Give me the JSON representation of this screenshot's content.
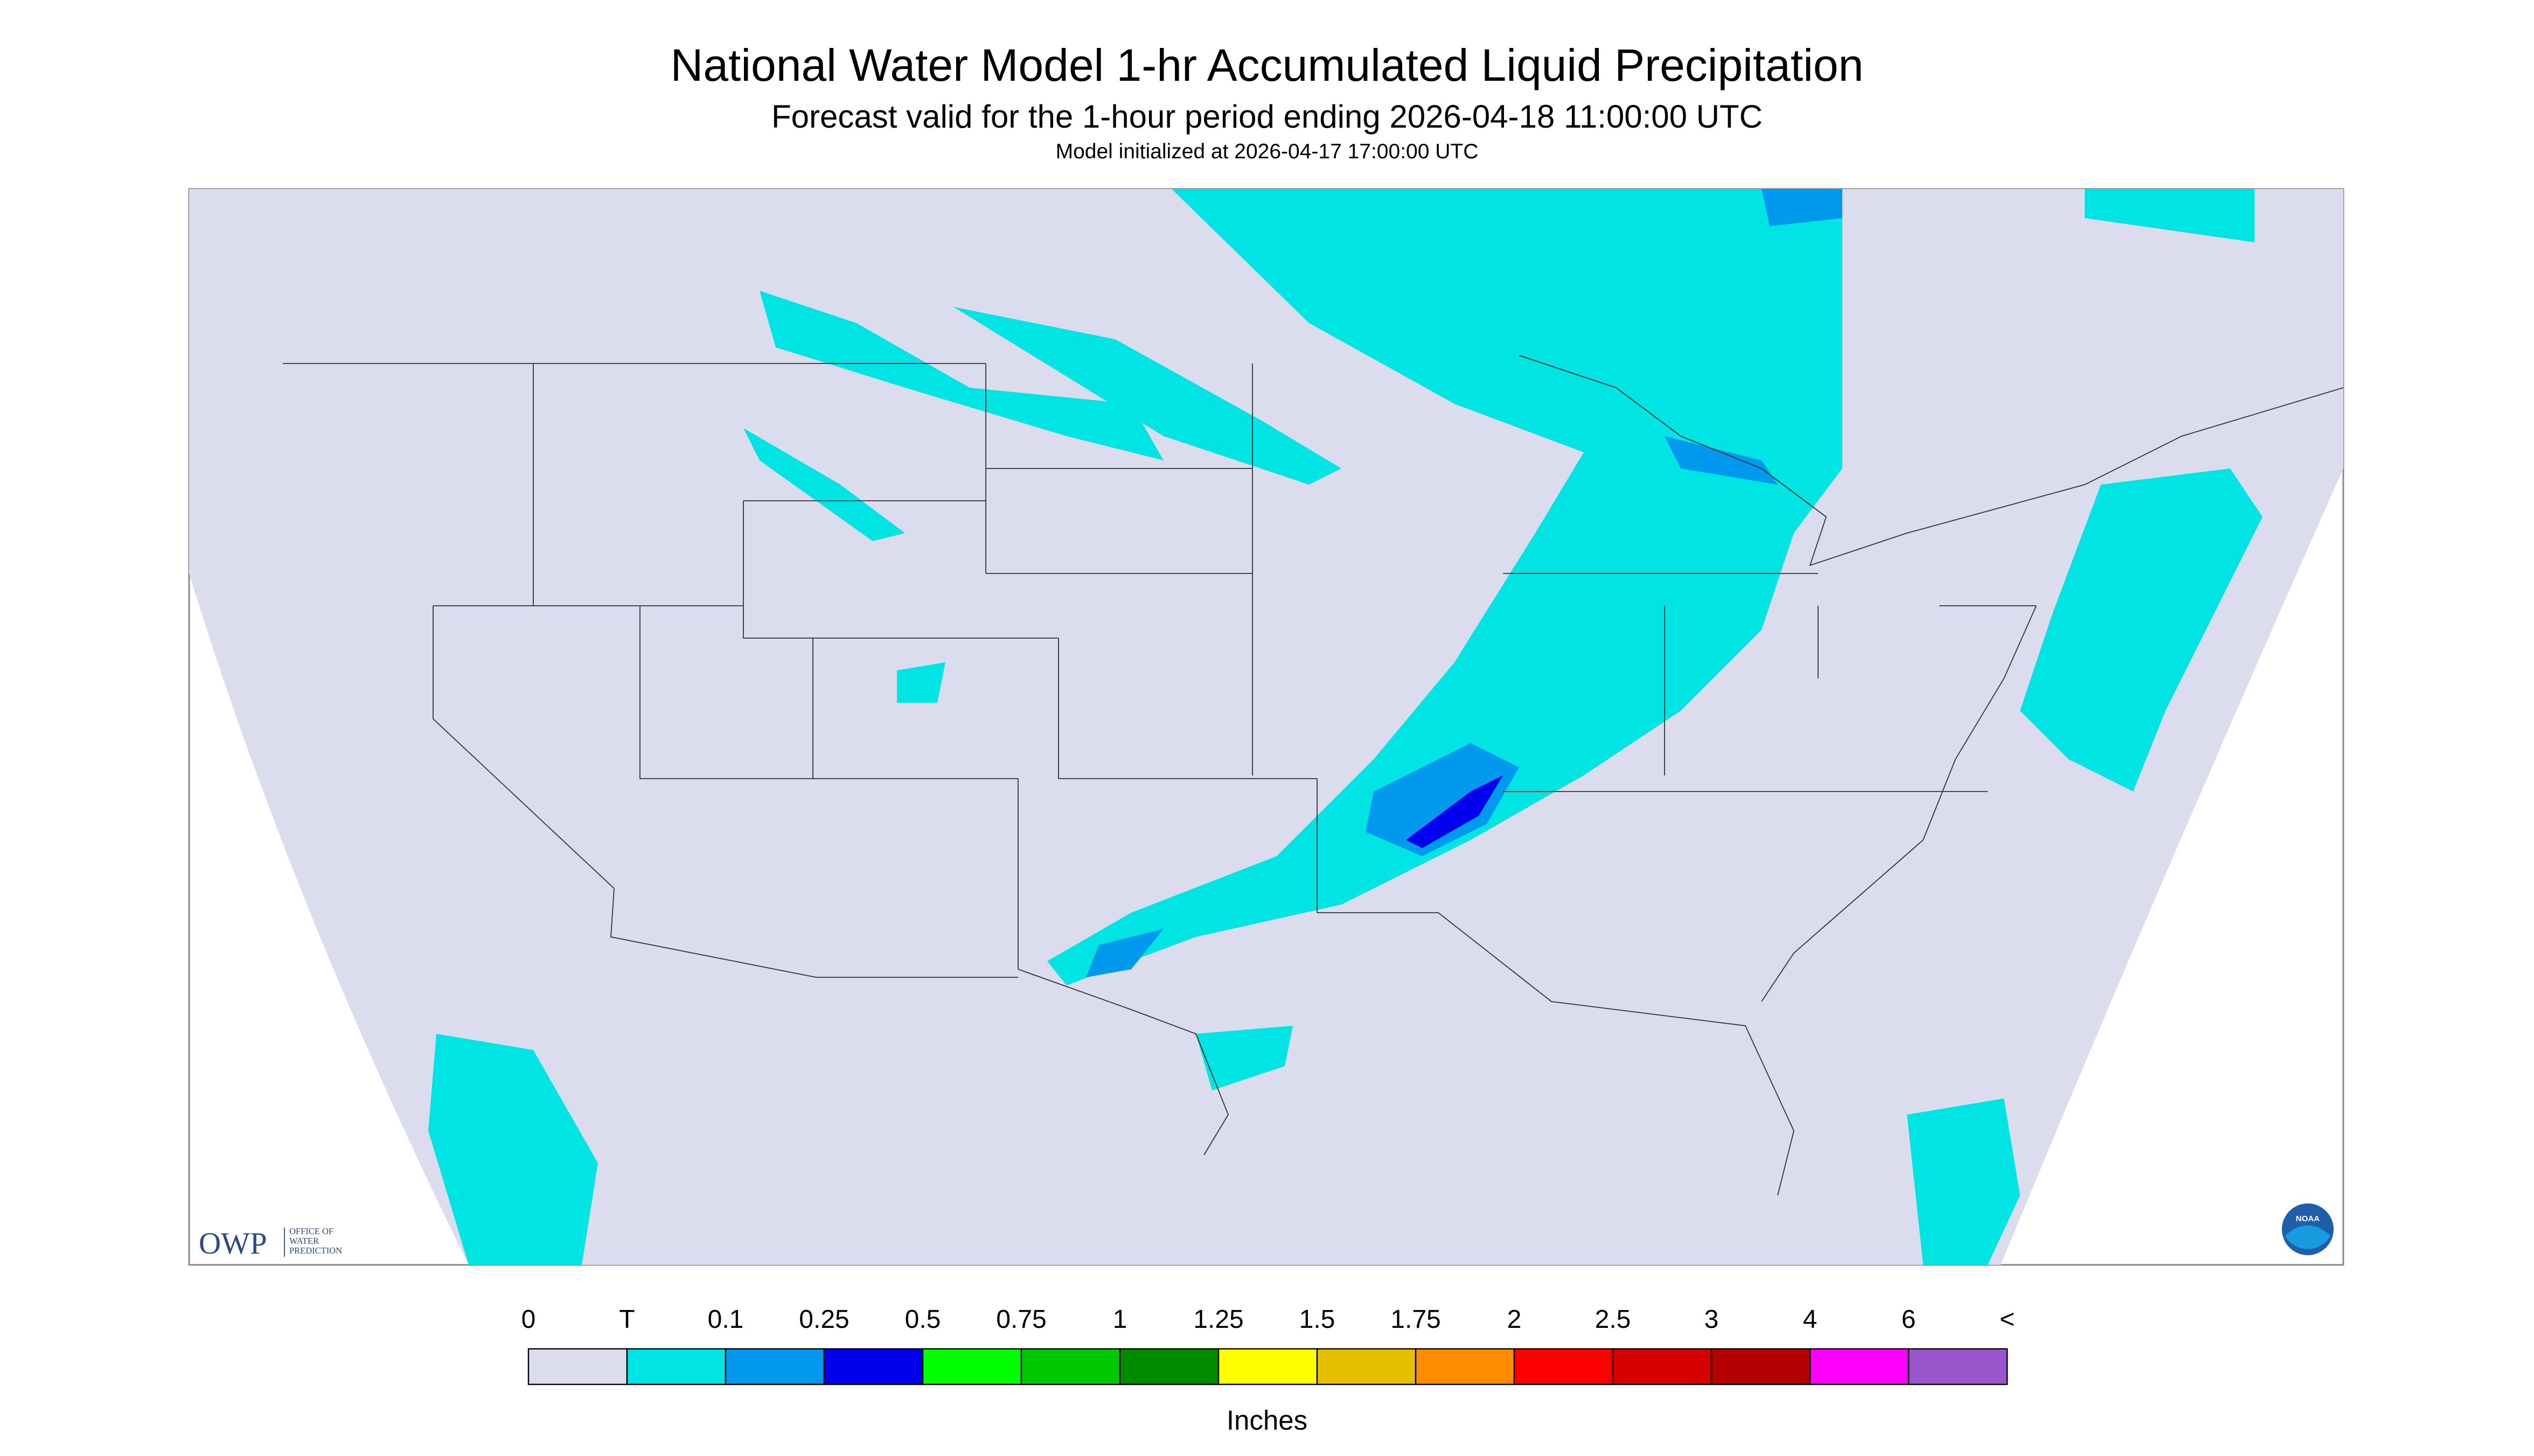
{
  "header": {
    "title": "National Water Model 1-hr Accumulated Liquid Precipitation",
    "subtitle": "Forecast valid for the 1-hour period ending 2026-04-18 11:00:00 UTC",
    "note": "Model initialized at 2026-04-17 17:00:00 UTC"
  },
  "logos": {
    "owp": "OWP",
    "owp_name": [
      "OFFICE OF",
      "WATER",
      "PREDICTION"
    ],
    "noaa": "NOAA"
  },
  "legend": {
    "labels": [
      "0",
      "T",
      "0.1",
      "0.25",
      "0.5",
      "0.75",
      "1",
      "1.25",
      "1.5",
      "1.75",
      "2",
      "2.5",
      "3",
      "4",
      "6",
      "<"
    ],
    "colors": [
      "#dcdcef",
      "#00e4e4",
      "#0099ee",
      "#0000ee",
      "#00ff00",
      "#00c800",
      "#008a00",
      "#ffff00",
      "#e6c000",
      "#ff8c00",
      "#ff0000",
      "#d60000",
      "#b40000",
      "#ff00ff",
      "#9955cc"
    ],
    "units": "Inches"
  }
}
